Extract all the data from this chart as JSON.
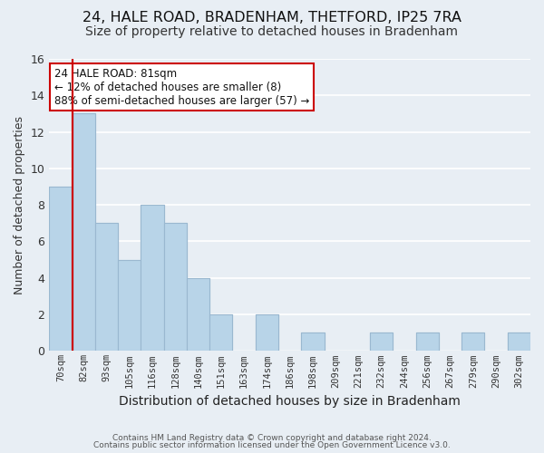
{
  "title": "24, HALE ROAD, BRADENHAM, THETFORD, IP25 7RA",
  "subtitle": "Size of property relative to detached houses in Bradenham",
  "xlabel": "Distribution of detached houses by size in Bradenham",
  "ylabel": "Number of detached properties",
  "bar_labels": [
    "70sqm",
    "82sqm",
    "93sqm",
    "105sqm",
    "116sqm",
    "128sqm",
    "140sqm",
    "151sqm",
    "163sqm",
    "174sqm",
    "186sqm",
    "198sqm",
    "209sqm",
    "221sqm",
    "232sqm",
    "244sqm",
    "256sqm",
    "267sqm",
    "279sqm",
    "290sqm",
    "302sqm"
  ],
  "bar_values": [
    9,
    13,
    7,
    5,
    8,
    7,
    4,
    2,
    0,
    2,
    0,
    1,
    0,
    0,
    1,
    0,
    1,
    0,
    1,
    0,
    1
  ],
  "bar_color": "#b8d4e8",
  "bar_edge_color": "#9ab8d0",
  "reference_line_color": "#cc0000",
  "ylim": [
    0,
    16
  ],
  "yticks": [
    0,
    2,
    4,
    6,
    8,
    10,
    12,
    14,
    16
  ],
  "annotation_title": "24 HALE ROAD: 81sqm",
  "annotation_line1": "← 12% of detached houses are smaller (8)",
  "annotation_line2": "88% of semi-detached houses are larger (57) →",
  "annotation_box_color": "#ffffff",
  "annotation_box_edge_color": "#cc0000",
  "footer_line1": "Contains HM Land Registry data © Crown copyright and database right 2024.",
  "footer_line2": "Contains public sector information licensed under the Open Government Licence v3.0.",
  "background_color": "#e8eef4",
  "grid_color": "#ffffff",
  "title_fontsize": 11.5,
  "subtitle_fontsize": 10
}
